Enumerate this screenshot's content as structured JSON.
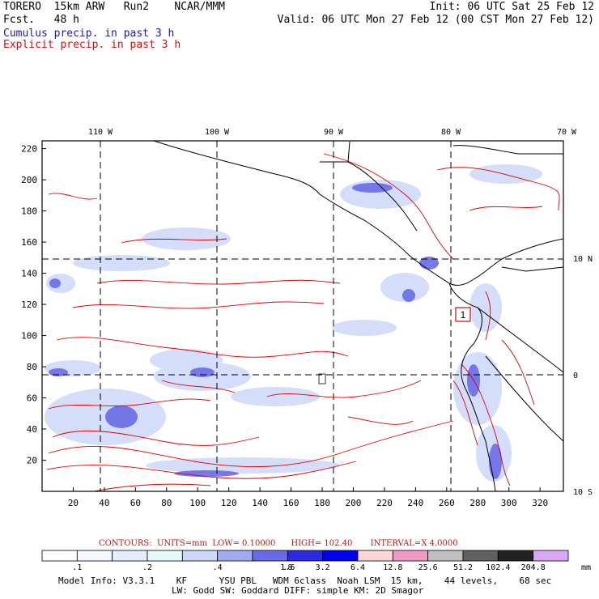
{
  "header": {
    "model": "TORERO",
    "resolution": "15km ARW",
    "run": "Run2",
    "org": "NCAR/MMM",
    "fcst_label": "Fcst.",
    "fcst_value": "48 h",
    "init": "Init: 06 UTC Sat 25 Feb 12",
    "valid": "Valid: 06 UTC Mon 27 Feb 12 (00 CST Mon 27 Feb 12)",
    "line_cumulus": "Cumulus precip. in past 3 h",
    "line_explicit": "Explicit precip. in past 3 h"
  },
  "colors": {
    "cumulus_text": "#1a1aa8",
    "explicit_text": "#cc1111",
    "explicit_contour": "#dd0000",
    "land_outline": "#000000"
  },
  "map": {
    "lon_labels": [
      "110 W",
      "100 W",
      "90 W",
      "80 W",
      "70 W"
    ],
    "lat_labels": [
      "10 N",
      "0",
      "10 S"
    ],
    "x_ticks": [
      "20",
      "40",
      "60",
      "80",
      "100",
      "120",
      "140",
      "160",
      "180",
      "200",
      "220",
      "240",
      "260",
      "280",
      "300",
      "320"
    ],
    "y_ticks": [
      "20",
      "40",
      "60",
      "80",
      "100",
      "120",
      "140",
      "160",
      "180",
      "200",
      "220"
    ],
    "marker_label": "1",
    "x_range": [
      0,
      335
    ],
    "y_range": [
      0,
      225
    ]
  },
  "contour_info": {
    "contours": "CONTOURS:",
    "units": "UNITS=mm",
    "low": "LOW= 0.10000",
    "high": "HIGH= 102.40",
    "interval": "INTERVAL=X 4.0000"
  },
  "colorbar": {
    "labels": [
      ".1",
      ".2",
      ".4",
      ".8",
      "1.6",
      "3.2",
      "6.4",
      "12.8",
      "25.6",
      "51.2",
      "102.4",
      "204.8"
    ],
    "unit": "mm",
    "fills": [
      "#ffffff",
      "#f4f7ff",
      "#e4edff",
      "#e6f8f8",
      "#cdd8f8",
      "#a2aaf0",
      "#6a6ae6",
      "#2a2ae2",
      "#0000f0",
      "#ffd6d6",
      "#f09ac8",
      "#c0c0c0",
      "#606060",
      "#222222",
      "#d8a8f4"
    ]
  },
  "footer": {
    "line1": "Model Info: V3.3.1    KF      YSU PBL   WDM 6class  Noah LSM  15 km,    44 levels,    68 sec",
    "line2": "LW: Godd SW: Goddard DIFF: simple KM: 2D Smagor"
  }
}
